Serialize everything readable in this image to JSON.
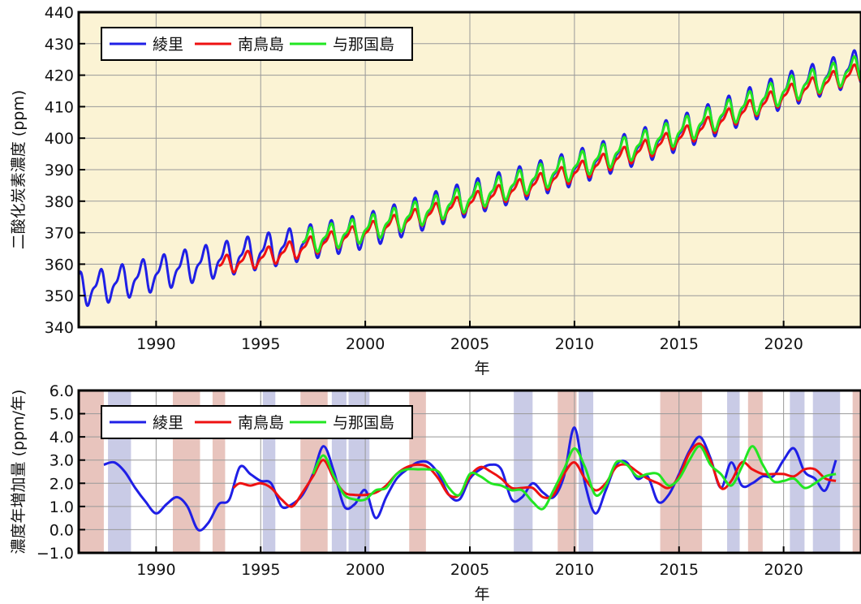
{
  "chart_data": [
    {
      "type": "line",
      "ylabel": "二酸化炭素濃度 (ppm)",
      "xlabel": "年",
      "xlim": [
        1986.3,
        2023.7
      ],
      "ylim": [
        340,
        440
      ],
      "background": "#fbf3d4",
      "grid": true,
      "xticks": [
        1990,
        1995,
        2000,
        2005,
        2010,
        2015,
        2020
      ],
      "xtick_labels": [
        "1990",
        "1995",
        "2000",
        "2005",
        "2010",
        "2015",
        "2020"
      ],
      "yticks": [
        340,
        350,
        360,
        370,
        380,
        390,
        400,
        410,
        420,
        430,
        440
      ],
      "ytick_labels": [
        "340",
        "350",
        "360",
        "370",
        "380",
        "390",
        "400",
        "410",
        "420",
        "430",
        "440"
      ],
      "legend_position": "top-left",
      "series": [
        {
          "name": "綾里",
          "color": "#1f1fe6",
          "seasonal_cycle": true,
          "trend": [
            [
              1986.3,
              352
            ],
            [
              1987.5,
              353
            ],
            [
              1990,
              357
            ],
            [
              1992,
              360
            ],
            [
              1995,
              364
            ],
            [
              2000,
              370.5
            ],
            [
              2005,
              381
            ],
            [
              2010,
              390.5
            ],
            [
              2015,
              401.5
            ],
            [
              2020,
              415
            ],
            [
              2023.7,
              423
            ]
          ],
          "amplitude": 6.5,
          "start": 1986.3,
          "end": 2023.7
        },
        {
          "name": "南鳥島",
          "color": "#ee1111",
          "seasonal_cycle": true,
          "trend": [
            [
              1993,
              359.5
            ],
            [
              1995,
              362
            ],
            [
              2000,
              370
            ],
            [
              2005,
              379.5
            ],
            [
              2010,
              389
            ],
            [
              2015,
              400
            ],
            [
              2020,
              413.5
            ],
            [
              2023.7,
              421
            ]
          ],
          "amplitude": 3.5,
          "start": 1993,
          "end": 2023.7
        },
        {
          "name": "与那国島",
          "color": "#22e622",
          "seasonal_cycle": true,
          "trend": [
            [
              1997,
              367
            ],
            [
              2000,
              371
            ],
            [
              2005,
              381
            ],
            [
              2010,
              391
            ],
            [
              2015,
              402
            ],
            [
              2020,
              415
            ],
            [
              2023.7,
              422.5
            ]
          ],
          "amplitude": 4.8,
          "start": 1997,
          "end": 2023.7
        }
      ]
    },
    {
      "type": "line",
      "ylabel": "濃度年増加量 (ppm/年)",
      "xlabel": "年",
      "xlim": [
        1986.3,
        2023.7
      ],
      "ylim": [
        -1.0,
        6.0
      ],
      "grid": true,
      "xticks": [
        1990,
        1995,
        2000,
        2005,
        2010,
        2015,
        2020
      ],
      "xtick_labels": [
        "1990",
        "1995",
        "2000",
        "2005",
        "2010",
        "2015",
        "2020"
      ],
      "yticks": [
        -1.0,
        0.0,
        1.0,
        2.0,
        3.0,
        4.0,
        5.0,
        6.0
      ],
      "ytick_labels": [
        "−1.0",
        "0.0",
        "1.0",
        "2.0",
        "3.0",
        "4.0",
        "5.0",
        "6.0"
      ],
      "legend_position": "top-left",
      "shaded_periods": [
        {
          "kind": "el_nino",
          "color": "#e8c4bd",
          "start": 1986.3,
          "end": 1987.5
        },
        {
          "kind": "la_nina",
          "color": "#c9cbe6",
          "start": 1987.7,
          "end": 1988.8
        },
        {
          "kind": "el_nino",
          "color": "#e8c4bd",
          "start": 1990.8,
          "end": 1992.1
        },
        {
          "kind": "el_nino",
          "color": "#e8c4bd",
          "start": 1992.7,
          "end": 1993.3
        },
        {
          "kind": "la_nina",
          "color": "#c9cbe6",
          "start": 1995.1,
          "end": 1995.7
        },
        {
          "kind": "el_nino",
          "color": "#e8c4bd",
          "start": 1996.9,
          "end": 1998.2
        },
        {
          "kind": "la_nina",
          "color": "#c9cbe6",
          "start": 1998.4,
          "end": 1999.1
        },
        {
          "kind": "la_nina",
          "color": "#c9cbe6",
          "start": 1999.2,
          "end": 2000.2
        },
        {
          "kind": "el_nino",
          "color": "#e8c4bd",
          "start": 2002.1,
          "end": 2002.9
        },
        {
          "kind": "la_nina",
          "color": "#c9cbe6",
          "start": 2007.1,
          "end": 2008.0
        },
        {
          "kind": "el_nino",
          "color": "#e8c4bd",
          "start": 2009.2,
          "end": 2010.1
        },
        {
          "kind": "la_nina",
          "color": "#c9cbe6",
          "start": 2010.2,
          "end": 2010.9
        },
        {
          "kind": "el_nino",
          "color": "#e8c4bd",
          "start": 2014.1,
          "end": 2016.1
        },
        {
          "kind": "la_nina",
          "color": "#c9cbe6",
          "start": 2017.3,
          "end": 2017.9
        },
        {
          "kind": "el_nino",
          "color": "#e8c4bd",
          "start": 2018.3,
          "end": 2019.0
        },
        {
          "kind": "la_nina",
          "color": "#c9cbe6",
          "start": 2020.3,
          "end": 2021.0
        },
        {
          "kind": "la_nina",
          "color": "#c9cbe6",
          "start": 2021.4,
          "end": 2022.7
        },
        {
          "kind": "el_nino",
          "color": "#e8c4bd",
          "start": 2023.3,
          "end": 2023.7
        }
      ],
      "series": [
        {
          "name": "綾里",
          "color": "#1f1fe6",
          "x": [
            1987.5,
            1988.0,
            1988.5,
            1989.0,
            1989.5,
            1990.0,
            1990.5,
            1991.0,
            1991.5,
            1992.0,
            1992.5,
            1993.0,
            1993.5,
            1994.0,
            1994.5,
            1995.0,
            1995.5,
            1996.0,
            1996.5,
            1997.0,
            1997.5,
            1998.0,
            1998.5,
            1999.0,
            1999.5,
            2000.0,
            2000.5,
            2001.0,
            2001.5,
            2002.0,
            2002.5,
            2003.0,
            2003.5,
            2004.0,
            2004.5,
            2005.0,
            2005.5,
            2006.0,
            2006.5,
            2007.0,
            2007.5,
            2008.0,
            2008.5,
            2009.0,
            2009.5,
            2010.0,
            2010.5,
            2011.0,
            2011.5,
            2012.0,
            2012.5,
            2013.0,
            2013.5,
            2014.0,
            2014.5,
            2015.0,
            2015.5,
            2016.0,
            2016.5,
            2017.0,
            2017.5,
            2018.0,
            2018.5,
            2019.0,
            2019.5,
            2020.0,
            2020.5,
            2021.0,
            2021.5,
            2022.0,
            2022.5
          ],
          "y": [
            2.8,
            2.9,
            2.5,
            1.8,
            1.2,
            0.7,
            1.1,
            1.4,
            1.0,
            0.0,
            0.3,
            1.1,
            1.3,
            2.7,
            2.4,
            2.1,
            2.0,
            1.0,
            1.1,
            1.5,
            2.4,
            3.6,
            2.5,
            1.0,
            1.1,
            1.7,
            0.5,
            1.4,
            2.2,
            2.6,
            2.9,
            2.9,
            2.4,
            1.5,
            1.3,
            2.2,
            2.6,
            2.8,
            2.6,
            1.3,
            1.4,
            2.0,
            1.6,
            1.4,
            2.3,
            4.4,
            2.0,
            0.7,
            1.7,
            2.8,
            2.9,
            2.2,
            2.3,
            1.2,
            1.5,
            2.4,
            3.4,
            4.0,
            3.1,
            1.8,
            2.9,
            1.9,
            2.0,
            2.3,
            2.3,
            3.0,
            3.5,
            2.5,
            2.2,
            1.7,
            3.0
          ]
        },
        {
          "name": "南鳥島",
          "color": "#ee1111",
          "x": [
            1993.7,
            1994.0,
            1994.5,
            1995.0,
            1995.5,
            1996.0,
            1996.5,
            1997.0,
            1997.5,
            1998.0,
            1998.5,
            1999.0,
            1999.5,
            2000.0,
            2000.5,
            2001.0,
            2001.5,
            2002.0,
            2002.5,
            2003.0,
            2003.5,
            2004.0,
            2004.5,
            2005.0,
            2005.5,
            2006.0,
            2006.5,
            2007.0,
            2007.5,
            2008.0,
            2008.5,
            2009.0,
            2009.5,
            2010.0,
            2010.5,
            2011.0,
            2011.5,
            2012.0,
            2012.5,
            2013.0,
            2013.5,
            2014.0,
            2014.5,
            2015.0,
            2015.5,
            2016.0,
            2016.5,
            2017.0,
            2017.5,
            2018.0,
            2018.5,
            2019.0,
            2019.5,
            2020.0,
            2020.5,
            2021.0,
            2021.5,
            2022.0,
            2022.5
          ],
          "y": [
            1.8,
            2.0,
            1.9,
            2.0,
            1.8,
            1.3,
            1.0,
            1.6,
            2.3,
            3.0,
            2.2,
            1.6,
            1.5,
            1.5,
            1.6,
            1.9,
            2.4,
            2.7,
            2.8,
            2.7,
            2.2,
            1.5,
            1.5,
            2.3,
            2.7,
            2.5,
            2.2,
            1.8,
            1.8,
            1.8,
            1.4,
            1.5,
            2.4,
            2.9,
            2.2,
            1.7,
            2.0,
            2.7,
            2.8,
            2.5,
            2.2,
            2.0,
            1.8,
            2.3,
            3.3,
            3.7,
            3.0,
            1.8,
            2.1,
            2.9,
            2.6,
            2.4,
            2.4,
            2.4,
            2.3,
            2.6,
            2.6,
            2.2,
            2.1
          ]
        },
        {
          "name": "与那国島",
          "color": "#22e622",
          "x": [
            1997.5,
            1998.0,
            1998.5,
            1999.0,
            1999.5,
            2000.0,
            2000.5,
            2001.0,
            2001.5,
            2002.0,
            2002.5,
            2003.0,
            2003.5,
            2004.0,
            2004.5,
            2005.0,
            2005.5,
            2006.0,
            2006.5,
            2007.0,
            2007.5,
            2008.0,
            2008.5,
            2009.0,
            2009.5,
            2010.0,
            2010.5,
            2011.0,
            2011.5,
            2012.0,
            2012.5,
            2013.0,
            2013.5,
            2014.0,
            2014.5,
            2015.0,
            2015.5,
            2016.0,
            2016.5,
            2017.0,
            2017.5,
            2018.0,
            2018.5,
            2019.0,
            2019.5,
            2020.0,
            2020.5,
            2021.0,
            2021.5,
            2022.0,
            2022.5
          ],
          "y": [
            2.4,
            3.2,
            2.3,
            1.5,
            1.3,
            1.3,
            1.7,
            1.8,
            2.4,
            2.6,
            2.6,
            2.6,
            2.5,
            1.8,
            1.5,
            2.4,
            2.3,
            2.0,
            1.9,
            1.7,
            1.7,
            1.2,
            0.9,
            1.7,
            2.6,
            3.5,
            2.7,
            1.5,
            1.9,
            2.9,
            2.8,
            2.3,
            2.4,
            2.4,
            1.9,
            2.2,
            3.0,
            3.6,
            2.8,
            2.4,
            1.9,
            2.7,
            3.6,
            2.8,
            2.1,
            2.1,
            2.2,
            1.8,
            2.0,
            2.3,
            2.4
          ]
        }
      ]
    }
  ]
}
